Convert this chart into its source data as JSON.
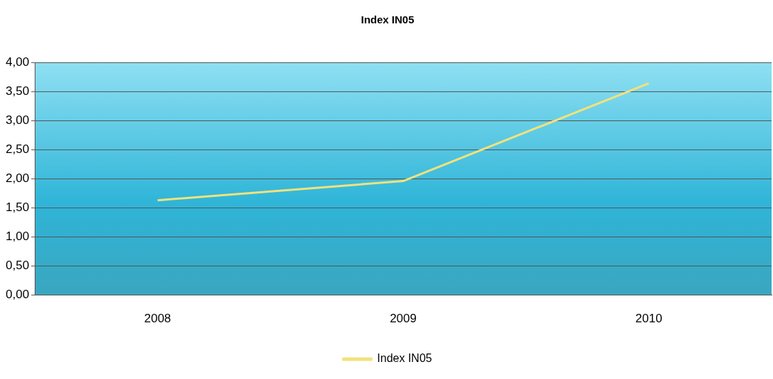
{
  "chart_data": {
    "type": "line",
    "title": "Index IN05",
    "categories": [
      "2008",
      "2009",
      "2010"
    ],
    "series": [
      {
        "name": "Index IN05",
        "color": "#f2e27c",
        "values": [
          1.63,
          1.96,
          3.64
        ]
      }
    ],
    "ylim": [
      0,
      4
    ],
    "yticks": [
      {
        "value": 0,
        "label": "0,00"
      },
      {
        "value": 0.5,
        "label": "0,50"
      },
      {
        "value": 1,
        "label": "1,00"
      },
      {
        "value": 1.5,
        "label": "1,50"
      },
      {
        "value": 2,
        "label": "2,00"
      },
      {
        "value": 2.5,
        "label": "2,50"
      },
      {
        "value": 3,
        "label": "3,00"
      },
      {
        "value": 3.5,
        "label": "3,50"
      },
      {
        "value": 4,
        "label": "4,00"
      }
    ],
    "grid": "y",
    "legend": "bottom",
    "marker": "none",
    "line_style": "solid"
  }
}
